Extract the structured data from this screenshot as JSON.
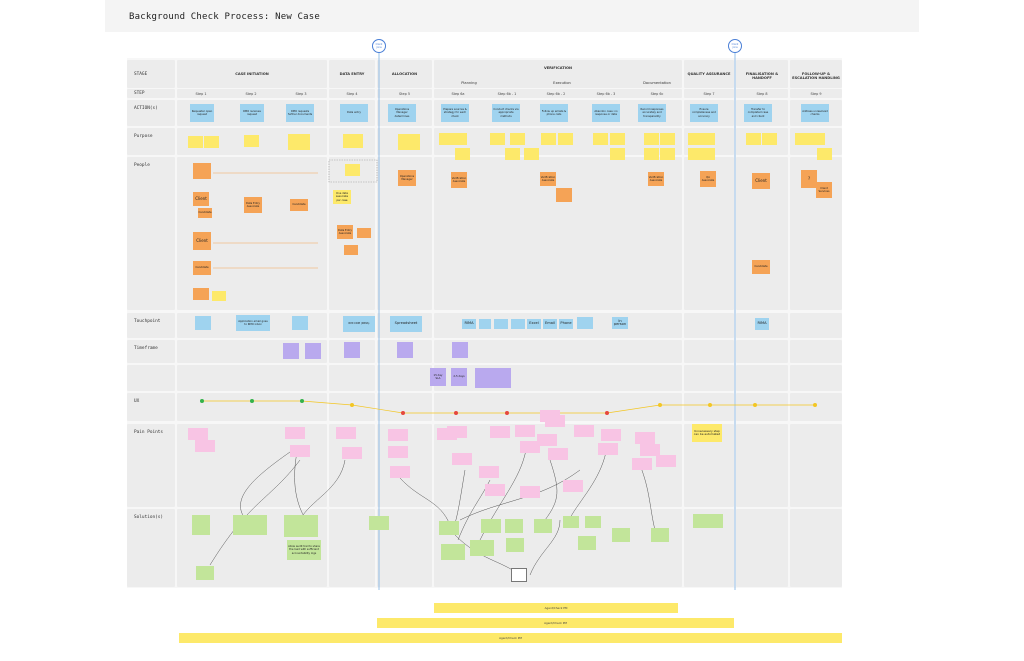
{
  "title": "Background Check Process: New Case",
  "milestones": [
    "Client joins",
    "Client joins"
  ],
  "phases": [
    {
      "label": "CASE INITIATION"
    },
    {
      "label": "DATA ENTRY"
    },
    {
      "label": "ALLOCATION"
    },
    {
      "label": "VERIFICATION"
    },
    {
      "label": "QUALITY ASSURANCE"
    },
    {
      "label": "FINALISATION & HANDOFF"
    },
    {
      "label": "FOLLOW-UP & ESCALATION HANDLING"
    }
  ],
  "subphases": [
    "Planning",
    "Execution",
    "Documentation"
  ],
  "rows": {
    "stage": "STAGE",
    "step": "STEP",
    "actions": "ACTION(s)",
    "purpose": "Purpose",
    "people": "People",
    "touchpoint": "Touchpoint",
    "timeframe": "Timeframe",
    "ux": "UX",
    "pain": "Pain Points",
    "solutions": "Solution(s)"
  },
  "steps": [
    "Step 1",
    "Step 2",
    "Step 3",
    "Step 4",
    "Step 5",
    "Step 6a",
    "Step 6b - 1",
    "Step 6b - 2",
    "Step 6b - 3",
    "Step 6c",
    "Step 7",
    "Step 8",
    "Step 9"
  ],
  "actions": [
    "Requester open request",
    "RMO receives request",
    "RMO requests further documents",
    "Data entry",
    "Operations Manager determines",
    "Prepare sources & strategy for each check",
    "Conduct checks via appropriate methods",
    "Follow up emails & phone calls",
    "Abandon case: no response or data",
    "Record responses accurately and transparently",
    "Ensure completeness and accuracy",
    "Transfer to completed case and client",
    "Address unresolved checks"
  ],
  "people_notes": [
    "Client",
    "Client",
    "Candidate",
    "Data Entry Associate",
    "Candidate",
    "One data associate per case",
    "Data Entry Associate",
    "Verification Associate",
    "Verification Associate",
    "Client",
    "Client",
    "?",
    "Client Services",
    "QA Associate",
    "Candidate",
    "Operations Manager",
    "Candidate"
  ],
  "touchpoints": [
    "RMIMA",
    "Application email goes to RMO inbox",
    "RMI CRM (RIMA)",
    "Spreadsheet",
    "RIMA",
    "Excel",
    "Email",
    "Phone",
    "In person",
    "RIMA"
  ],
  "timeframe_notes": [
    "15 day SLA",
    "2-5 days"
  ],
  "ux_points": [
    {
      "x": 0,
      "level": "good"
    },
    {
      "x": 1,
      "level": "good"
    },
    {
      "x": 2,
      "level": "good"
    },
    {
      "x": 3,
      "level": "ok"
    },
    {
      "x": 4,
      "level": "bad"
    },
    {
      "x": 5,
      "level": "bad"
    },
    {
      "x": 6,
      "level": "bad"
    },
    {
      "x": 7,
      "level": "bad"
    },
    {
      "x": 8,
      "level": "bad"
    },
    {
      "x": 9,
      "level": "ok"
    },
    {
      "x": 10,
      "level": "ok"
    },
    {
      "x": 11,
      "level": "ok"
    },
    {
      "x": 12,
      "level": "ok"
    }
  ],
  "pain_highlight": "Unnecessary step can be automated",
  "solution_notes": [
    "Allow audit trail to share the load with sufficient accountability logs"
  ],
  "bands": [
    "Agent/Check PM",
    "Agent/Check PM",
    "Agent/Check PM"
  ],
  "colors": {
    "yellow": "#fde96a",
    "orange": "#f5a356",
    "blue": "#9fd3ef",
    "purple": "#b9a9ee",
    "pink": "#f8c4e4",
    "green": "#c2e59a",
    "line": "#6aa6e0",
    "ux_good": "#34b24a",
    "ux_ok": "#f3c623",
    "ux_bad": "#e5483c"
  }
}
